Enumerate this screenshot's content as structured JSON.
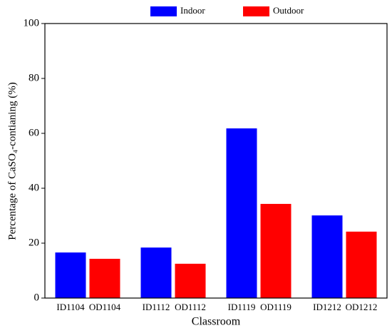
{
  "chart_data": {
    "type": "bar",
    "x_label": "Classroom",
    "y_label": "Percentage of CaSO₄-contianing (%)",
    "categories": [
      "ID1104",
      "OD1104",
      "ID1112",
      "OD1112",
      "ID1119",
      "OD1119",
      "ID1212",
      "OD1212"
    ],
    "series": [
      {
        "name": "Indoor",
        "color": "#0000ff",
        "values": [
          16.6,
          null,
          18.4,
          null,
          61.8,
          null,
          30.1,
          null
        ]
      },
      {
        "name": "Outdoor",
        "color": "#ff0000",
        "values": [
          null,
          14.3,
          null,
          12.5,
          null,
          34.3,
          null,
          24.2
        ]
      }
    ],
    "ylim": [
      0,
      100
    ],
    "yticks": [
      0,
      20,
      40,
      60,
      80,
      100
    ],
    "legend": "top",
    "grid": false
  }
}
